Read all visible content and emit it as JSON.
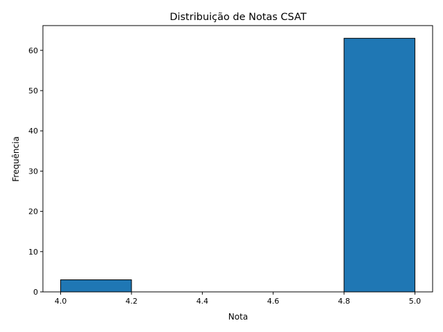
{
  "chart_data": {
    "type": "bar",
    "title": "Distribuição de Notas CSAT",
    "xlabel": "Nota",
    "ylabel": "Frequência",
    "xlim": [
      3.95,
      5.05
    ],
    "ylim": [
      0,
      66.15
    ],
    "x_ticks": [
      "4.0",
      "4.2",
      "4.4",
      "4.6",
      "4.8",
      "5.0"
    ],
    "y_ticks": [
      "0",
      "10",
      "20",
      "30",
      "40",
      "50",
      "60"
    ],
    "bins": [
      {
        "x0": 4.0,
        "x1": 4.2,
        "value": 3
      },
      {
        "x0": 4.2,
        "x1": 4.4,
        "value": 0
      },
      {
        "x0": 4.4,
        "x1": 4.6,
        "value": 0
      },
      {
        "x0": 4.6,
        "x1": 4.8,
        "value": 0
      },
      {
        "x0": 4.8,
        "x1": 5.0,
        "value": 63
      }
    ],
    "bar_color": "#1f77b4",
    "edge_color": "#000000",
    "grid": false,
    "legend": "none"
  }
}
